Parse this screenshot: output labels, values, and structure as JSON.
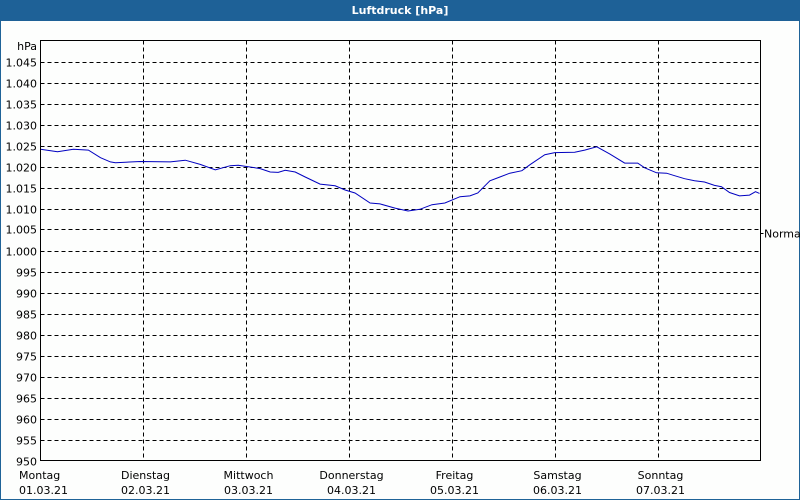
{
  "window": {
    "title": "Luftdruck [hPa]"
  },
  "colors": {
    "title_bar": "#1e6197",
    "series_line": "#0000c0",
    "grid": "#000000",
    "background": "#ffffff"
  },
  "chart_data": {
    "type": "line",
    "title": "Luftdruck [hPa]",
    "xlabel": "",
    "ylabel": "hPa",
    "ylim": [
      950,
      1050
    ],
    "y_ticks": [
      950,
      955,
      960,
      965,
      970,
      975,
      980,
      985,
      990,
      995,
      1000,
      1005,
      1010,
      1015,
      1020,
      1025,
      1030,
      1035,
      1040,
      1045
    ],
    "y_tick_labels": [
      "950",
      "955",
      "960",
      "965",
      "970",
      "975",
      "980",
      "985",
      "990",
      "995",
      "1.000",
      "1.005",
      "1.010",
      "1.015",
      "1.020",
      "1.025",
      "1.030",
      "1.035",
      "1.040",
      "1.045"
    ],
    "x_range_days": [
      0,
      7
    ],
    "x_ticks": [
      {
        "day": "Montag",
        "date": "01.03.21"
      },
      {
        "day": "Dienstag",
        "date": "02.03.21"
      },
      {
        "day": "Mittwoch",
        "date": "03.03.21"
      },
      {
        "day": "Donnerstag",
        "date": "04.03.21"
      },
      {
        "day": "Freitag",
        "date": "05.03.21"
      },
      {
        "day": "Samstag",
        "date": "06.03.21"
      },
      {
        "day": "Sonntag",
        "date": "07.03.21"
      }
    ],
    "grid": true,
    "legend": null,
    "reference_line": {
      "label": "Normal",
      "value": 1004.2
    },
    "series": [
      {
        "name": "Luftdruck",
        "x_days": [
          0.0,
          0.165,
          0.32,
          0.466,
          0.583,
          0.68,
          0.728,
          0.971,
          1.262,
          1.408,
          1.553,
          1.699,
          1.845,
          1.922,
          2.136,
          2.233,
          2.311,
          2.379,
          2.476,
          2.573,
          2.718,
          2.864,
          2.961,
          3.058,
          3.204,
          3.301,
          3.447,
          3.573,
          3.689,
          3.806,
          3.932,
          4.078,
          4.175,
          4.252,
          4.369,
          4.466,
          4.563,
          4.68,
          4.757,
          4.903,
          5.0,
          5.194,
          5.291,
          5.408,
          5.534,
          5.68,
          5.806,
          5.874,
          5.99,
          6.087,
          6.165,
          6.262,
          6.359,
          6.456,
          6.553,
          6.621,
          6.699,
          6.796,
          6.893,
          6.951,
          6.99
        ],
        "values": [
          1024.1,
          1023.5,
          1024.1,
          1023.9,
          1022.1,
          1021.1,
          1020.9,
          1021.2,
          1021.1,
          1021.5,
          1020.5,
          1019.2,
          1020.2,
          1020.3,
          1019.5,
          1018.7,
          1018.6,
          1019.1,
          1018.7,
          1017.5,
          1015.8,
          1015.4,
          1014.4,
          1013.7,
          1011.3,
          1011.1,
          1010.1,
          1009.4,
          1009.8,
          1010.9,
          1011.3,
          1012.8,
          1013.0,
          1013.7,
          1016.6,
          1017.5,
          1018.4,
          1019.0,
          1020.4,
          1022.8,
          1023.3,
          1023.4,
          1023.9,
          1024.7,
          1023.0,
          1020.8,
          1020.8,
          1019.7,
          1018.5,
          1018.4,
          1017.8,
          1017.1,
          1016.6,
          1016.3,
          1015.5,
          1015.2,
          1013.8,
          1013.0,
          1013.2,
          1014.0,
          1013.6
        ]
      }
    ]
  }
}
